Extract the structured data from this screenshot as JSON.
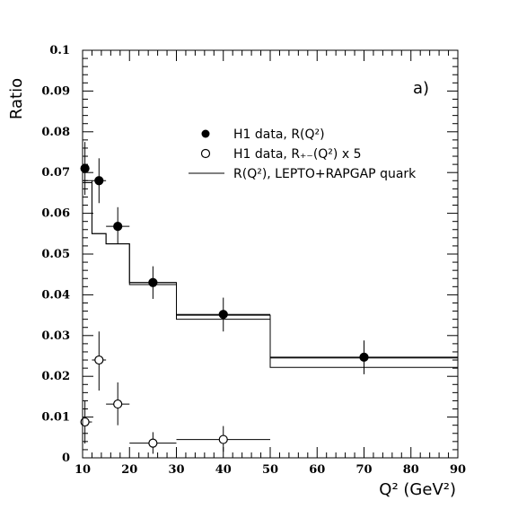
{
  "chart_data": {
    "type": "scatter",
    "panel_label": "a)",
    "xlabel": "Q² (GeV²)",
    "ylabel": "Ratio",
    "xlim": [
      10,
      90
    ],
    "ylim": [
      0,
      0.1
    ],
    "x_ticks": [
      "10",
      "20",
      "30",
      "40",
      "50",
      "60",
      "70",
      "80",
      "90"
    ],
    "y_ticks": [
      "0",
      "0.01",
      "0.02",
      "0.03",
      "0.04",
      "0.05",
      "0.06",
      "0.07",
      "0.08",
      "0.09",
      "0.1"
    ],
    "legend": {
      "placement": "top-right",
      "entries": [
        {
          "symbol": "filled-circle",
          "label": "H1 data, R(Q²)"
        },
        {
          "symbol": "open-circle",
          "label": "H1 data, R₊₋(Q²) x 5"
        },
        {
          "symbol": "line",
          "label": "R(Q²), LEPTO+RAPGAP quark"
        }
      ]
    },
    "series": [
      {
        "name": "H1 data, R(Q²)",
        "marker": "filled",
        "points": [
          {
            "x": 10.5,
            "y": 0.071,
            "xerr": [
              10,
              11
            ],
            "yerr": [
              0.0645,
              0.0775
            ]
          },
          {
            "x": 13.5,
            "y": 0.068,
            "xerr": [
              12,
              15
            ],
            "yerr": [
              0.0625,
              0.0735
            ]
          },
          {
            "x": 17.5,
            "y": 0.0568,
            "xerr": [
              15,
              20
            ],
            "yerr": [
              0.0525,
              0.0615
            ]
          },
          {
            "x": 25,
            "y": 0.043,
            "xerr": [
              20,
              30
            ],
            "yerr": [
              0.039,
              0.047
            ]
          },
          {
            "x": 40,
            "y": 0.0352,
            "xerr": [
              30,
              50
            ],
            "yerr": [
              0.031,
              0.0393
            ]
          },
          {
            "x": 70,
            "y": 0.0247,
            "xerr": [
              50,
              90
            ],
            "yerr": [
              0.0205,
              0.0288
            ]
          }
        ]
      },
      {
        "name": "H1 data, R₊₋(Q²) x 5",
        "marker": "open",
        "points": [
          {
            "x": 10.5,
            "y": 0.0088,
            "xerr": [
              10,
              12
            ],
            "yerr": [
              0.0035,
              0.014
            ]
          },
          {
            "x": 13.5,
            "y": 0.024,
            "xerr": [
              12,
              15
            ],
            "yerr": [
              0.0165,
              0.031
            ]
          },
          {
            "x": 17.5,
            "y": 0.0132,
            "xerr": [
              15,
              20
            ],
            "yerr": [
              0.008,
              0.0185
            ]
          },
          {
            "x": 25,
            "y": 0.0036,
            "xerr": [
              20,
              30
            ],
            "yerr": [
              0.001,
              0.0063
            ]
          },
          {
            "x": 40,
            "y": 0.0045,
            "xerr": [
              30,
              50
            ],
            "yerr": [
              0.0015,
              0.0078
            ]
          }
        ]
      }
    ],
    "mc_band": {
      "name": "R(Q²), LEPTO+RAPGAP quark",
      "bins": [
        {
          "x0": 10,
          "x1": 12,
          "upper": 0.068,
          "lower": 0.0675
        },
        {
          "x0": 12,
          "x1": 15,
          "upper": 0.055,
          "lower": 0.055
        },
        {
          "x0": 15,
          "x1": 20,
          "upper": 0.0525,
          "lower": 0.0525
        },
        {
          "x0": 20,
          "x1": 30,
          "upper": 0.043,
          "lower": 0.0425
        },
        {
          "x0": 30,
          "x1": 50,
          "upper": 0.035,
          "lower": 0.034
        },
        {
          "x0": 50,
          "x1": 90,
          "upper": 0.0245,
          "lower": 0.0222
        }
      ]
    }
  }
}
